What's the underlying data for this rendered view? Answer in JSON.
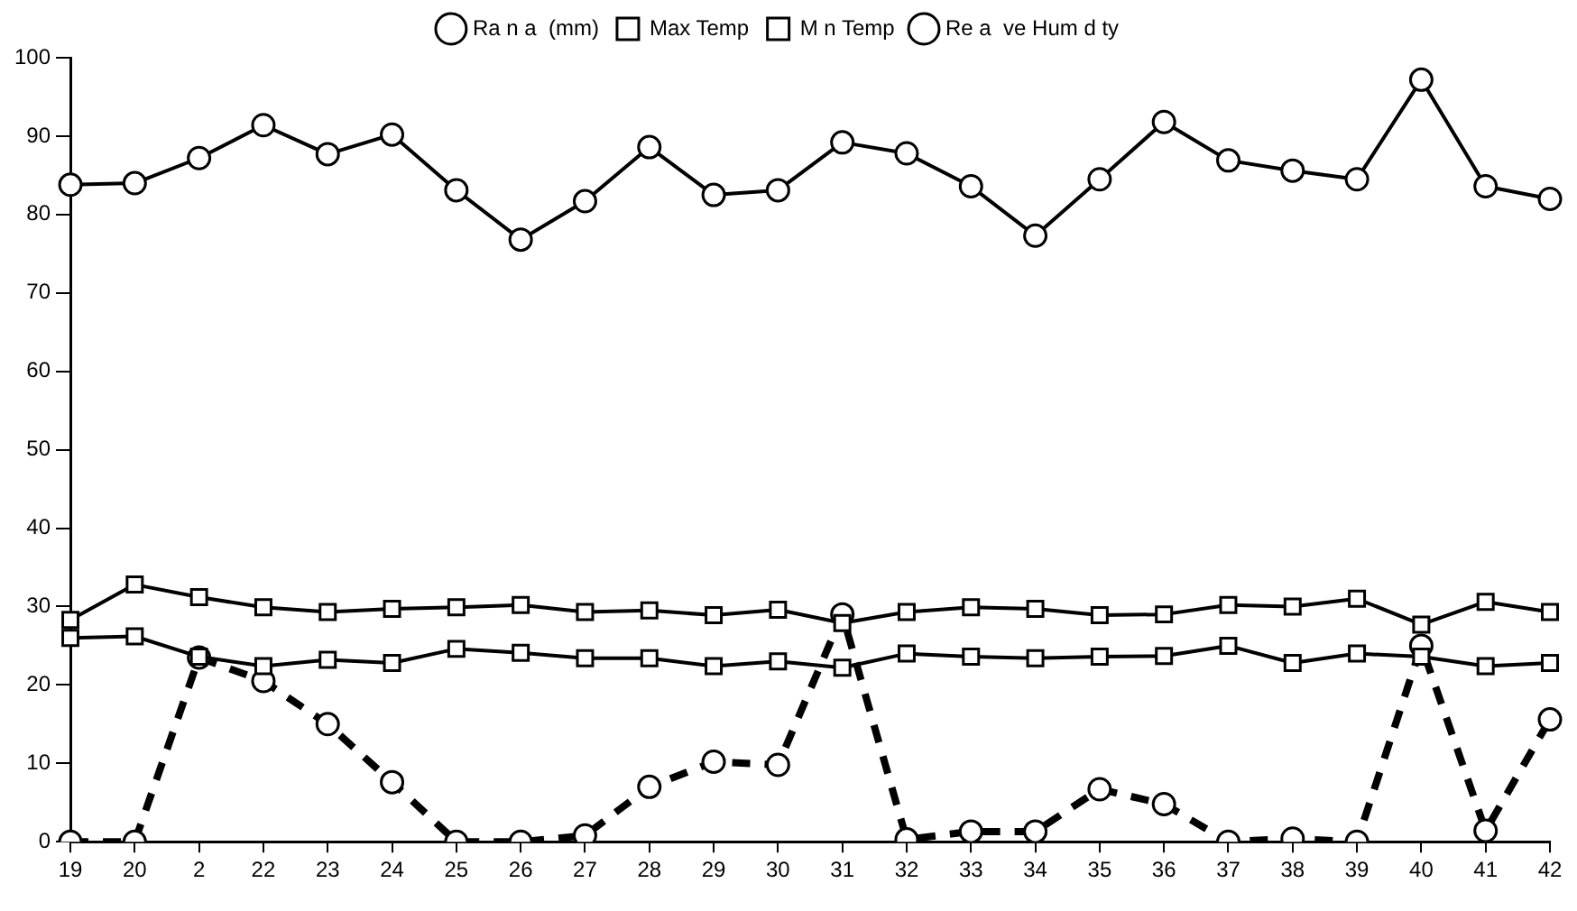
{
  "chart_data": {
    "type": "line",
    "categories": [
      "19",
      "20",
      "2",
      "22",
      "23",
      "24",
      "25",
      "26",
      "27",
      "28",
      "29",
      "30",
      "31",
      "32",
      "33",
      "34",
      "35",
      "36",
      "37",
      "38",
      "39",
      "40",
      "41",
      "42"
    ],
    "series": [
      {
        "name": "Ra n a  (mm)",
        "color": "#000000",
        "marker": "circle",
        "line_style": "dashed",
        "values": [
          0,
          0,
          23.5,
          20.5,
          15,
          7.6,
          0,
          0,
          0.8,
          7,
          10.2,
          9.8,
          29,
          0.3,
          1.3,
          1.3,
          6.7,
          4.8,
          0,
          0.4,
          0,
          25,
          1.4,
          15.6
        ]
      },
      {
        "name": "Max Temp",
        "color": "#000000",
        "marker": "square",
        "line_style": "solid",
        "values": [
          28.3,
          32.8,
          31.2,
          29.9,
          29.3,
          29.7,
          29.9,
          30.2,
          29.3,
          29.5,
          28.9,
          29.6,
          27.9,
          29.3,
          29.9,
          29.7,
          28.9,
          29,
          30.2,
          30,
          31,
          27.7,
          30.6,
          29.3
        ]
      },
      {
        "name": "M n Temp",
        "color": "#000000",
        "marker": "square",
        "line_style": "solid",
        "values": [
          26,
          26.2,
          23.6,
          22.4,
          23.2,
          22.8,
          24.6,
          24.1,
          23.4,
          23.4,
          22.4,
          23,
          22.2,
          24,
          23.6,
          23.4,
          23.6,
          23.7,
          25,
          22.8,
          24,
          23.6,
          22.4,
          22.8
        ]
      },
      {
        "name": "Re a  ve Hum d ty",
        "color": "#000000",
        "marker": "circle",
        "line_style": "solid",
        "values": [
          83.8,
          84,
          87.2,
          91.4,
          87.7,
          90.2,
          83.1,
          76.8,
          81.7,
          88.6,
          82.5,
          83.1,
          89.2,
          87.8,
          83.6,
          77.3,
          84.5,
          91.8,
          86.9,
          85.6,
          84.5,
          97.2,
          83.6,
          82
        ]
      }
    ],
    "ylim": [
      0,
      100
    ],
    "yticks": [
      0,
      10,
      20,
      30,
      40,
      50,
      60,
      70,
      80,
      90,
      100
    ],
    "grid": false,
    "legend": "top"
  }
}
